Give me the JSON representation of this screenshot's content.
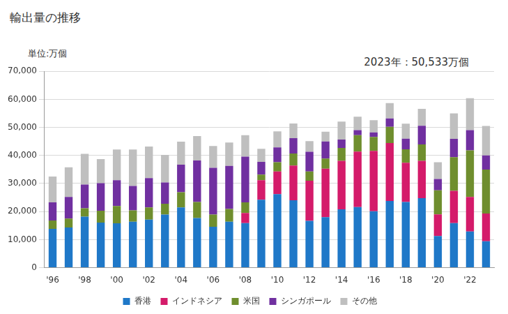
{
  "chart_data": {
    "type": "bar",
    "title": "輸出量の推移",
    "y_label": "単位:万個",
    "annotations": [
      "2023年：50,533万個"
    ],
    "stacked": true,
    "grid": true,
    "legend": "bottom",
    "categories": [
      "'96",
      null,
      "'98",
      null,
      "'00",
      null,
      "'02",
      null,
      "'04",
      null,
      "'06",
      null,
      "'08",
      null,
      "'10",
      null,
      "'12",
      null,
      "'14",
      null,
      "'16",
      null,
      "'18",
      null,
      "'20",
      null,
      "'22",
      null
    ],
    "series": [
      {
        "name": "香港",
        "color": "#1f78c8",
        "values": [
          13800,
          14300,
          18200,
          16100,
          15800,
          16400,
          17100,
          18900,
          21500,
          17700,
          14600,
          16400,
          15900,
          24200,
          26200,
          24000,
          16700,
          18000,
          20800,
          21600,
          20100,
          23800,
          23400,
          24800,
          11300,
          15900,
          12900,
          9400
        ]
      },
      {
        "name": "インドネシア",
        "color": "#d41b6a",
        "values": [
          0,
          0,
          0,
          0,
          0,
          0,
          0,
          0,
          0,
          0,
          0,
          0,
          3600,
          7000,
          8100,
          12400,
          14300,
          17300,
          17300,
          19800,
          21500,
          20600,
          14000,
          13300,
          7700,
          11500,
          12300,
          9900
        ]
      },
      {
        "name": "米国",
        "color": "#6f8e2e",
        "values": [
          3000,
          3200,
          3000,
          4200,
          6200,
          4000,
          4400,
          3900,
          5400,
          5700,
          4300,
          4500,
          3800,
          2000,
          3300,
          4300,
          3300,
          3600,
          4600,
          5800,
          5000,
          5800,
          4800,
          5800,
          8600,
          12000,
          16600,
          15700
        ]
      },
      {
        "name": "シンガポール",
        "color": "#7030a0",
        "values": [
          6500,
          7700,
          8400,
          9800,
          9200,
          8700,
          10400,
          7600,
          9800,
          14800,
          16700,
          15400,
          16300,
          4500,
          5300,
          5500,
          7000,
          6100,
          3000,
          1800,
          1600,
          3000,
          3800,
          6700,
          4000,
          6500,
          7200,
          5000
        ]
      },
      {
        "name": "その他",
        "color": "#bfbfbf",
        "values": [
          9200,
          10600,
          11000,
          8600,
          10900,
          13000,
          11300,
          9800,
          8200,
          8700,
          7800,
          8300,
          7600,
          4700,
          5700,
          5200,
          3800,
          3500,
          6400,
          4800,
          4400,
          5500,
          5300,
          6000,
          6000,
          9100,
          11400,
          10533
        ]
      }
    ],
    "ylim": [
      0,
      70000
    ],
    "yticks": [
      0,
      {
        "value": 10000,
        "label": "10,000"
      },
      {
        "value": 20000,
        "label": "20,000"
      },
      {
        "value": 30000,
        "label": "30,000"
      },
      {
        "value": 40000,
        "label": "40,000"
      },
      {
        "value": 50000,
        "label": "50,000"
      },
      {
        "value": 60000,
        "label": "60,000"
      },
      {
        "value": 70000,
        "label": "70,000"
      }
    ]
  }
}
